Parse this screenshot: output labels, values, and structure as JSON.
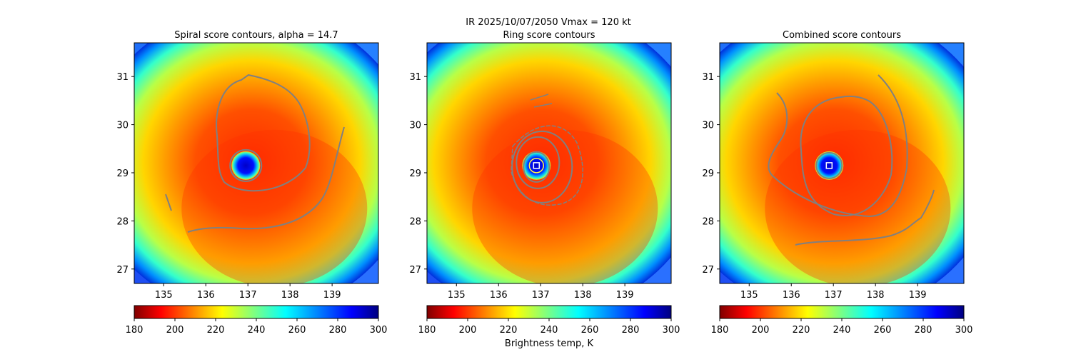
{
  "figure": {
    "suptitle": "IR  2025/10/07/2050    Vmax = 120 kt",
    "colorbar_label": "Brightness temp, K"
  },
  "panels": [
    {
      "title": "Spiral score contours, alpha = 14.7",
      "center_marker": false
    },
    {
      "title": "Ring score contours",
      "center_marker": true
    },
    {
      "title": "Combined score contours",
      "center_marker": true
    }
  ],
  "chart_data": [
    {
      "type": "heatmap",
      "title": "Spiral score contours, alpha = 14.7",
      "xlim": [
        134.3,
        140.1
      ],
      "ylim": [
        26.7,
        31.7
      ],
      "xticks": [
        135,
        136,
        137,
        138,
        139
      ],
      "yticks": [
        27,
        28,
        29,
        30,
        31
      ],
      "colorbar": {
        "min": 180,
        "max": 300,
        "ticks": [
          180,
          200,
          220,
          240,
          260,
          280,
          300
        ],
        "cmap": "jet_r"
      },
      "storm_center": [
        136.95,
        29.15
      ],
      "contour_color": "#808080"
    },
    {
      "type": "heatmap",
      "title": "Ring score contours",
      "xlim": [
        134.3,
        140.1
      ],
      "ylim": [
        26.7,
        31.7
      ],
      "xticks": [
        135,
        136,
        137,
        138,
        139
      ],
      "yticks": [
        27,
        28,
        29,
        30,
        31
      ],
      "colorbar": {
        "min": 180,
        "max": 300,
        "ticks": [
          180,
          200,
          220,
          240,
          260,
          280,
          300
        ],
        "cmap": "jet_r"
      },
      "storm_center": [
        136.9,
        29.15
      ],
      "contour_color": "#808080"
    },
    {
      "type": "heatmap",
      "title": "Combined score contours",
      "xlim": [
        134.3,
        140.1
      ],
      "ylim": [
        26.7,
        31.7
      ],
      "xticks": [
        135,
        136,
        137,
        138,
        139
      ],
      "yticks": [
        27,
        28,
        29,
        30,
        31
      ],
      "colorbar": {
        "min": 180,
        "max": 300,
        "ticks": [
          180,
          200,
          220,
          240,
          260,
          280,
          300
        ],
        "cmap": "jet_r"
      },
      "storm_center": [
        136.9,
        29.15
      ],
      "contour_color": "#808080"
    }
  ]
}
